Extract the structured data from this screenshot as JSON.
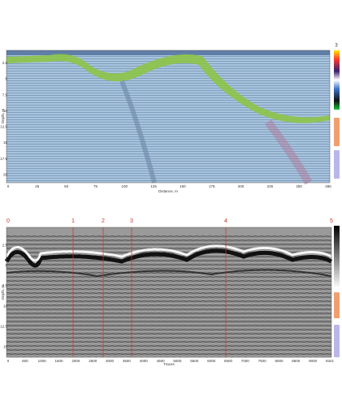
{
  "top_panel": {
    "scale_max": "3",
    "y_label": "Depth, m",
    "x_label": "Distance, m",
    "y_ticks": [
      "2.5",
      "5",
      "7.5",
      "10",
      "12.5",
      "15",
      "17.5",
      "20"
    ],
    "x_ticks": [
      "0",
      "25",
      "50",
      "75",
      "100",
      "125",
      "150",
      "175",
      "200",
      "225",
      "250",
      "286"
    ]
  },
  "bottom_panel": {
    "markers": [
      "0",
      "1",
      "2",
      "3",
      "4",
      "5"
    ],
    "y_label": "Depth, m",
    "x_label": "Traces",
    "y_ticks": [
      "2.5",
      "5",
      "7.5",
      "10",
      "12.5",
      "15"
    ],
    "x_ticks": [
      "0",
      "500",
      "1000",
      "1500",
      "2000",
      "2500",
      "3000",
      "3500",
      "4000",
      "4500",
      "5000",
      "5500",
      "6000",
      "6500",
      "7000",
      "7500",
      "8000",
      "8500",
      "9000",
      "9321"
    ]
  }
}
